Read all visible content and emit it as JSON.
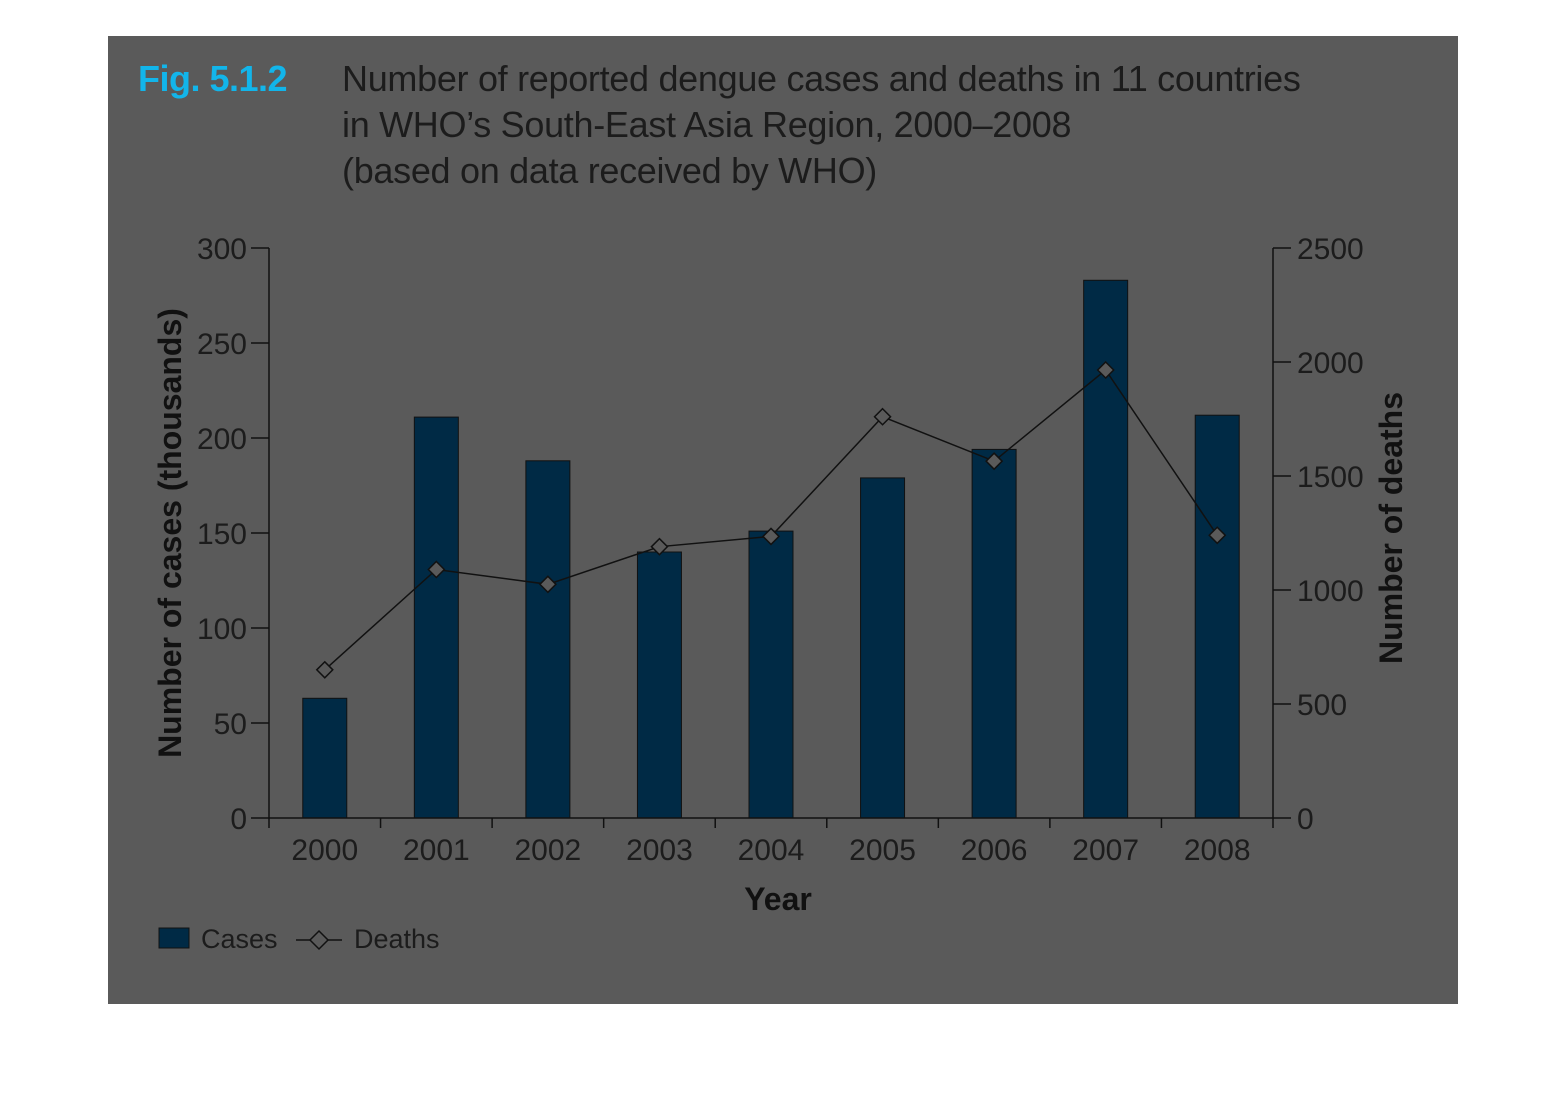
{
  "figure": {
    "number": "Fig. 5.1.2",
    "title_lines": [
      "Number of reported dengue cases and deaths in 11 countries",
      "in WHO’s South-East Asia Region, 2000–2008",
      "(based on data received by WHO)"
    ]
  },
  "chart_data": {
    "type": "bar",
    "title": "Number of reported dengue cases and deaths in 11 countries in WHO’s South-East Asia Region, 2000–2008 (based on data received by WHO)",
    "categories": [
      "2000",
      "2001",
      "2002",
      "2003",
      "2004",
      "2005",
      "2006",
      "2007",
      "2008"
    ],
    "xlabel": "Year",
    "ylabel": "Number of cases (thousands)",
    "y2label": "Number of deaths",
    "ylim": [
      0,
      300
    ],
    "y2lim": [
      0,
      2500
    ],
    "yticks": [
      "0",
      "50",
      "100",
      "150",
      "200",
      "250",
      "300"
    ],
    "y2ticks": [
      "0",
      "500",
      "1000",
      "1500",
      "2000",
      "2500"
    ],
    "series": [
      {
        "name": "Cases",
        "type": "bar",
        "axis": "left",
        "values": [
          63,
          211,
          188,
          140,
          151,
          179,
          194,
          283,
          212
        ]
      },
      {
        "name": "Deaths",
        "type": "line",
        "axis": "right",
        "marker": "diamond",
        "values": [
          650,
          1090,
          1025,
          1190,
          1235,
          1760,
          1565,
          1965,
          1240
        ]
      }
    ],
    "legend": {
      "position": "bottom-left",
      "items": [
        "Cases",
        "Deaths"
      ]
    },
    "grid": false,
    "colors": {
      "cases_bar": "#002a45",
      "deaths_line": "#111111",
      "background": "#5a5a5a",
      "figure_number": "#12b5ea"
    }
  }
}
